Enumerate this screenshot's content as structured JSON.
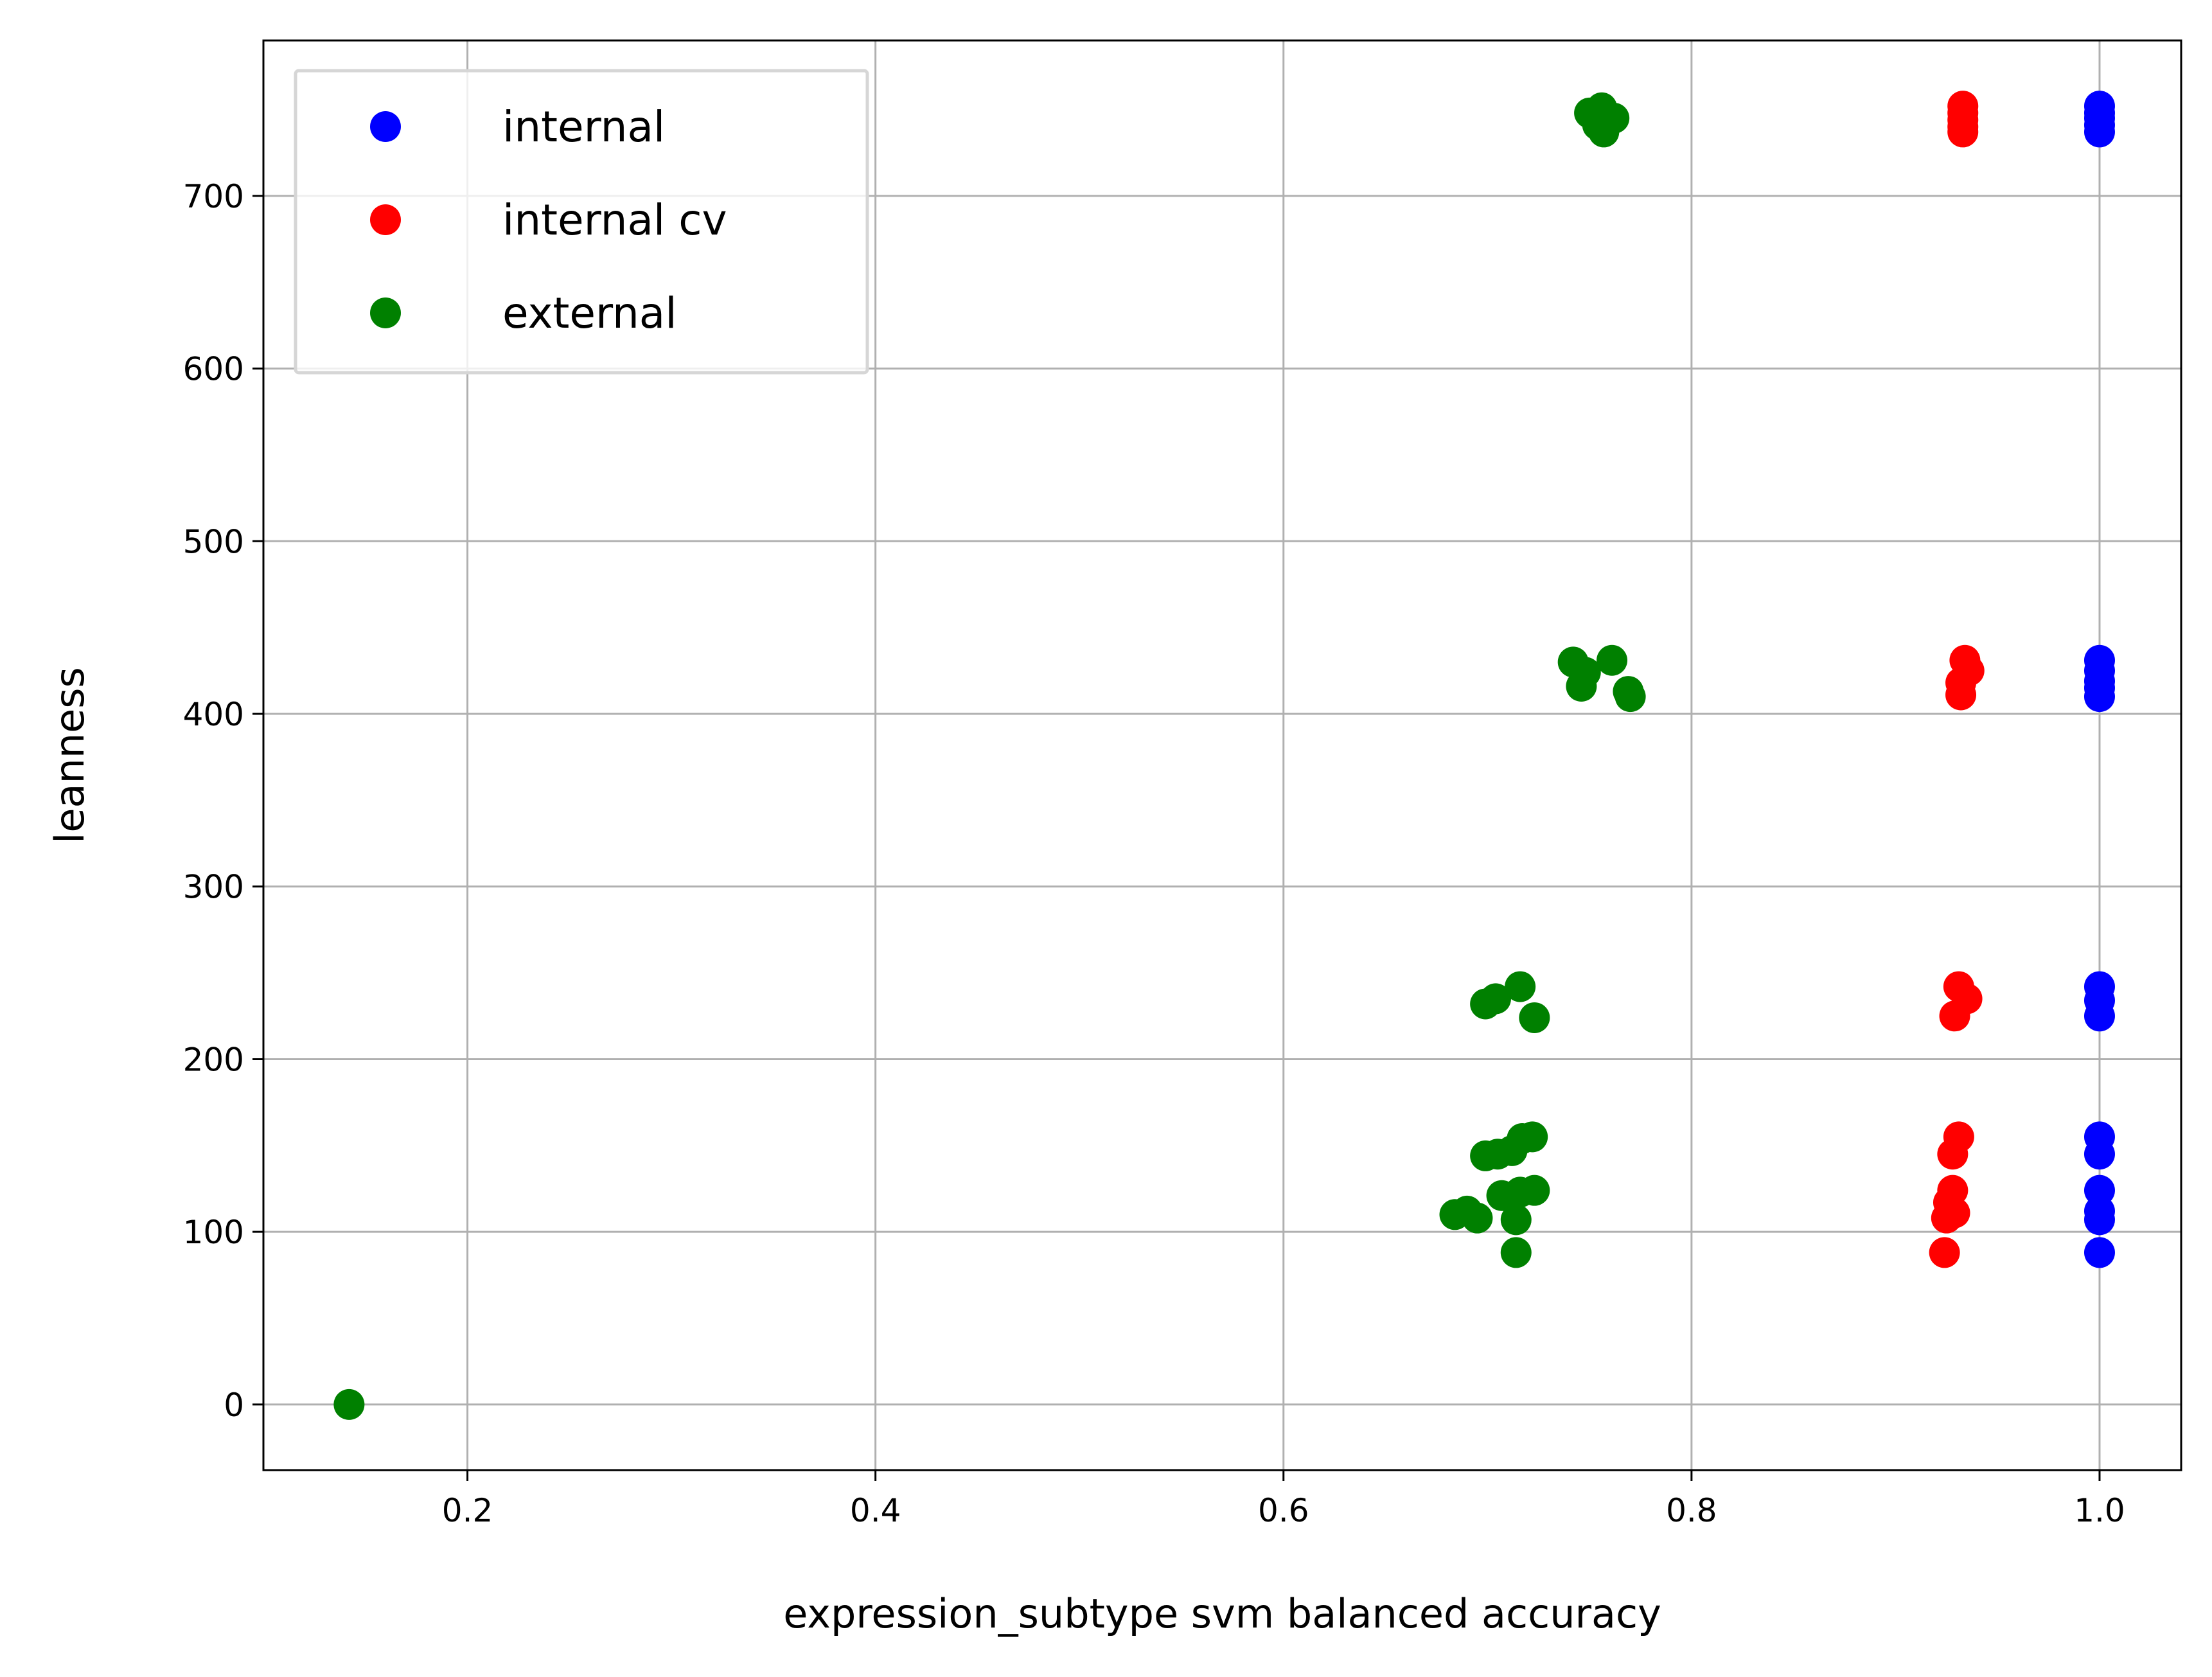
{
  "chart_data": {
    "type": "scatter",
    "xlabel": "expression_subtype svm balanced accuracy",
    "ylabel": "leanness",
    "xlim": [
      0.1,
      1.04
    ],
    "ylim": [
      -38,
      790
    ],
    "xticks": [
      {
        "value": 0.2,
        "label": "0.2"
      },
      {
        "value": 0.4,
        "label": "0.4"
      },
      {
        "value": 0.6,
        "label": "0.6"
      },
      {
        "value": 0.8,
        "label": "0.8"
      },
      {
        "value": 1.0,
        "label": "1.0"
      }
    ],
    "yticks": [
      {
        "value": 0,
        "label": "0"
      },
      {
        "value": 100,
        "label": "100"
      },
      {
        "value": 200,
        "label": "200"
      },
      {
        "value": 300,
        "label": "300"
      },
      {
        "value": 400,
        "label": "400"
      },
      {
        "value": 500,
        "label": "500"
      },
      {
        "value": 600,
        "label": "600"
      },
      {
        "value": 700,
        "label": "700"
      }
    ],
    "grid": true,
    "legend_position": "top-left",
    "series": [
      {
        "name": "internal",
        "color": "#0000ff",
        "points": [
          [
            1.0,
            752
          ],
          [
            1.0,
            748
          ],
          [
            1.0,
            745
          ],
          [
            1.0,
            741
          ],
          [
            1.0,
            737
          ],
          [
            1.0,
            431
          ],
          [
            1.0,
            425
          ],
          [
            1.0,
            419
          ],
          [
            1.0,
            415
          ],
          [
            1.0,
            410
          ],
          [
            1.0,
            242
          ],
          [
            1.0,
            234
          ],
          [
            1.0,
            225
          ],
          [
            1.0,
            155
          ],
          [
            1.0,
            145
          ],
          [
            1.0,
            124
          ],
          [
            1.0,
            112
          ],
          [
            1.0,
            107
          ],
          [
            1.0,
            88
          ]
        ]
      },
      {
        "name": "internal cv",
        "color": "#ff0000",
        "points": [
          [
            0.933,
            752
          ],
          [
            0.933,
            748
          ],
          [
            0.933,
            744
          ],
          [
            0.933,
            740
          ],
          [
            0.933,
            737
          ],
          [
            0.934,
            431
          ],
          [
            0.936,
            425
          ],
          [
            0.932,
            418
          ],
          [
            0.932,
            411
          ],
          [
            0.931,
            242
          ],
          [
            0.935,
            235
          ],
          [
            0.929,
            225
          ],
          [
            0.931,
            155
          ],
          [
            0.928,
            145
          ],
          [
            0.928,
            124
          ],
          [
            0.926,
            117
          ],
          [
            0.929,
            111
          ],
          [
            0.925,
            108
          ],
          [
            0.924,
            88
          ]
        ]
      },
      {
        "name": "external",
        "color": "#008000",
        "points": [
          [
            0.142,
            0
          ],
          [
            0.75,
            748
          ],
          [
            0.756,
            751
          ],
          [
            0.759,
            745
          ],
          [
            0.762,
            745
          ],
          [
            0.754,
            741
          ],
          [
            0.757,
            737
          ],
          [
            0.742,
            430
          ],
          [
            0.748,
            424
          ],
          [
            0.761,
            431
          ],
          [
            0.746,
            416
          ],
          [
            0.769,
            413
          ],
          [
            0.77,
            410
          ],
          [
            0.699,
            232
          ],
          [
            0.704,
            235
          ],
          [
            0.716,
            242
          ],
          [
            0.723,
            224
          ],
          [
            0.699,
            144
          ],
          [
            0.705,
            145
          ],
          [
            0.712,
            147
          ],
          [
            0.717,
            154
          ],
          [
            0.722,
            155
          ],
          [
            0.707,
            121
          ],
          [
            0.716,
            123
          ],
          [
            0.723,
            124
          ],
          [
            0.684,
            110
          ],
          [
            0.69,
            112
          ],
          [
            0.695,
            108
          ],
          [
            0.714,
            107
          ],
          [
            0.714,
            88
          ]
        ]
      }
    ]
  }
}
